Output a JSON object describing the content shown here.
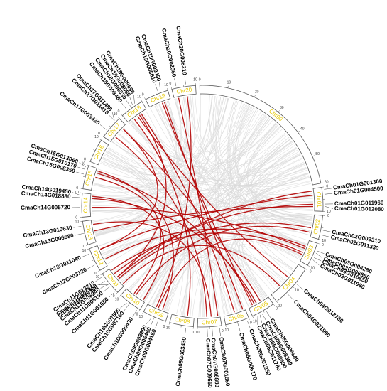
{
  "colors": {
    "segment_label": "#e6c800",
    "highlight_link": "#b30000",
    "background_link": "#d9d9d9"
  },
  "chromosomes": [
    {
      "id": "Chr00",
      "label": "Chr00",
      "max": 60
    },
    {
      "id": "Chr01",
      "label": "Chr01",
      "max": 10
    },
    {
      "id": "Chr02",
      "label": "Chr02",
      "max": 10
    },
    {
      "id": "Chr03",
      "label": "Chr03",
      "max": 10
    },
    {
      "id": "Chr04",
      "label": "Chr04",
      "max": 20
    },
    {
      "id": "Chr05",
      "label": "Chr05",
      "max": 10
    },
    {
      "id": "Chr06",
      "label": "Chr06",
      "max": 10
    },
    {
      "id": "Chr07",
      "label": "Chr07",
      "max": 10
    },
    {
      "id": "Chr08",
      "label": "Chr08",
      "max": 10
    },
    {
      "id": "Chr09",
      "label": "Chr09",
      "max": 10
    },
    {
      "id": "Chr10",
      "label": "Chr10",
      "max": 10
    },
    {
      "id": "Chr11",
      "label": "Chr11",
      "max": 10
    },
    {
      "id": "Chr12",
      "label": "Chr12",
      "max": 10
    },
    {
      "id": "Chr13",
      "label": "Chr13",
      "max": 10
    },
    {
      "id": "Chr14",
      "label": "Chr14",
      "max": 10
    },
    {
      "id": "Chr15",
      "label": "Chr15",
      "max": 10
    },
    {
      "id": "Chr16",
      "label": "Chr16",
      "max": 10
    },
    {
      "id": "Chr17",
      "label": "Chr17",
      "max": 10
    },
    {
      "id": "Chr18",
      "label": "Chr18",
      "max": 10
    },
    {
      "id": "Chr19",
      "label": "Chr19",
      "max": 10
    },
    {
      "id": "Chr20",
      "label": "Chr20",
      "max": 10
    }
  ],
  "genes": [
    {
      "name": "CmaCh01G001300",
      "chr": "Chr01",
      "pos": 1
    },
    {
      "name": "CmaCh01G004500",
      "chr": "Chr01",
      "pos": 3
    },
    {
      "name": "CmaCh01G011960",
      "chr": "Chr01",
      "pos": 7
    },
    {
      "name": "CmaCh01G012080",
      "chr": "Chr01",
      "pos": 8
    },
    {
      "name": "CmaCh02G009310",
      "chr": "Chr02",
      "pos": 6
    },
    {
      "name": "CmaCh02G011330",
      "chr": "Chr02",
      "pos": 8
    },
    {
      "name": "CmaCh03G004280",
      "chr": "Chr03",
      "pos": 3
    },
    {
      "name": "CmaCh03G006860",
      "chr": "Chr03",
      "pos": 4
    },
    {
      "name": "CmaCh03G010550",
      "chr": "Chr03",
      "pos": 6
    },
    {
      "name": "CmaCh03G011980",
      "chr": "Chr03",
      "pos": 7
    },
    {
      "name": "CmaCh04G012780",
      "chr": "Chr04",
      "pos": 8
    },
    {
      "name": "CmaCh04G021960",
      "chr": "Chr04",
      "pos": 14
    },
    {
      "name": "CmaCh05G006640",
      "chr": "Chr05",
      "pos": 4
    },
    {
      "name": "CmaCh05G008390",
      "chr": "Chr05",
      "pos": 6
    },
    {
      "name": "CmaCh05G008690",
      "chr": "Chr05",
      "pos": 7
    },
    {
      "name": "CmaCh05G011780",
      "chr": "Chr05",
      "pos": 8
    },
    {
      "name": "CmaCh06G001250",
      "chr": "Chr06",
      "pos": 1
    },
    {
      "name": "CmaCh06G006170",
      "chr": "Chr06",
      "pos": 5
    },
    {
      "name": "CmaCh07G001850",
      "chr": "Chr07",
      "pos": 1
    },
    {
      "name": "CmaCh07G006880",
      "chr": "Chr07",
      "pos": 4
    },
    {
      "name": "CmaCh07G009650",
      "chr": "Chr07",
      "pos": 6
    },
    {
      "name": "CmaCh08G003430",
      "chr": "Chr08",
      "pos": 3
    },
    {
      "name": "CmaCh09G004150",
      "chr": "Chr09",
      "pos": 3
    },
    {
      "name": "CmaCh09G006480",
      "chr": "Chr09",
      "pos": 5
    },
    {
      "name": "CmaCh09G008890",
      "chr": "Chr09",
      "pos": 6
    },
    {
      "name": "CmaCh10G000430",
      "chr": "Chr10",
      "pos": 1
    },
    {
      "name": "CmaCh10G007160",
      "chr": "Chr10",
      "pos": 5
    },
    {
      "name": "CmaCh10G007550",
      "chr": "Chr10",
      "pos": 6
    },
    {
      "name": "CmaCh11G001650",
      "chr": "Chr11",
      "pos": 1
    },
    {
      "name": "CmaCh11G005190",
      "chr": "Chr11",
      "pos": 4
    },
    {
      "name": "CmaCh11G006240",
      "chr": "Chr11",
      "pos": 5
    },
    {
      "name": "CmaCh11G006860",
      "chr": "Chr11",
      "pos": 5
    },
    {
      "name": "CmaCh11G010160",
      "chr": "Chr11",
      "pos": 7
    },
    {
      "name": "CmaCh11G013810",
      "chr": "Chr11",
      "pos": 9
    },
    {
      "name": "CmaCh12G003120",
      "chr": "Chr12",
      "pos": 3
    },
    {
      "name": "CmaCh12G011040",
      "chr": "Chr12",
      "pos": 8
    },
    {
      "name": "CmaCh13G006680",
      "chr": "Chr13",
      "pos": 5
    },
    {
      "name": "CmaCh13G010630",
      "chr": "Chr13",
      "pos": 8
    },
    {
      "name": "CmaCh14G005720",
      "chr": "Chr14",
      "pos": 4
    },
    {
      "name": "CmaCh14G018880",
      "chr": "Chr14",
      "pos": 8
    },
    {
      "name": "CmaCh14G019450",
      "chr": "Chr14",
      "pos": 9
    },
    {
      "name": "CmaCh15G008350",
      "chr": "Chr15",
      "pos": 6
    },
    {
      "name": "CmaCh15G010170",
      "chr": "Chr15",
      "pos": 8
    },
    {
      "name": "CmaCh15G013060",
      "chr": "Chr15",
      "pos": 9
    },
    {
      "name": "CmaCh17G003320",
      "chr": "Chr17",
      "pos": 3
    },
    {
      "name": "CmaCh17G011410",
      "chr": "Chr17",
      "pos": 8
    },
    {
      "name": "CmaCh17G011480",
      "chr": "Chr17",
      "pos": 8
    },
    {
      "name": "CmaCh18G003480",
      "chr": "Chr18",
      "pos": 3
    },
    {
      "name": "CmaCh18G006830",
      "chr": "Chr18",
      "pos": 5
    },
    {
      "name": "CmaCh18G008080",
      "chr": "Chr18",
      "pos": 6
    },
    {
      "name": "CmaCh18G009690",
      "chr": "Chr18",
      "pos": 7
    },
    {
      "name": "CmaCh19G008610",
      "chr": "Chr19",
      "pos": 6
    },
    {
      "name": "CmaCh19G009480",
      "chr": "Chr19",
      "pos": 7
    },
    {
      "name": "CmaCh20G002360",
      "chr": "Chr20",
      "pos": 2
    },
    {
      "name": "CmaCh20G008210",
      "chr": "Chr20",
      "pos": 6
    }
  ],
  "highlight_links": [
    [
      "CmaCh01G001300",
      "CmaCh11G006240"
    ],
    [
      "CmaCh01G004500",
      "CmaCh12G011040"
    ],
    [
      "CmaCh01G011960",
      "CmaCh11G010160"
    ],
    [
      "CmaCh01G012080",
      "CmaCh13G006680"
    ],
    [
      "CmaCh02G009310",
      "CmaCh11G005190"
    ],
    [
      "CmaCh02G011330",
      "CmaCh10G007160"
    ],
    [
      "CmaCh03G004280",
      "CmaCh12G003120"
    ],
    [
      "CmaCh03G006860",
      "CmaCh14G005720"
    ],
    [
      "CmaCh03G010550",
      "CmaCh11G013810"
    ],
    [
      "CmaCh03G011980",
      "CmaCh09G006480"
    ],
    [
      "CmaCh04G012780",
      "CmaCh18G006830"
    ],
    [
      "CmaCh04G021960",
      "CmaCh11G001650"
    ],
    [
      "CmaCh05G006640",
      "CmaCh17G011410"
    ],
    [
      "CmaCh05G008390",
      "CmaCh14G018880"
    ],
    [
      "CmaCh05G008690",
      "CmaCh15G010170"
    ],
    [
      "CmaCh05G011780",
      "CmaCh19G008610"
    ],
    [
      "CmaCh06G001250",
      "CmaCh19G009480"
    ],
    [
      "CmaCh06G006170",
      "CmaCh18G009690"
    ],
    [
      "CmaCh07G001850",
      "CmaCh20G002360"
    ],
    [
      "CmaCh07G006880",
      "CmaCh13G010630"
    ],
    [
      "CmaCh07G009650",
      "CmaCh17G003320"
    ],
    [
      "CmaCh08G003430",
      "CmaCh18G003480"
    ],
    [
      "CmaCh09G004150",
      "CmaCh15G013060"
    ],
    [
      "CmaCh09G008890",
      "CmaCh20G008210"
    ],
    [
      "CmaCh10G000430",
      "CmaCh14G019450"
    ],
    [
      "CmaCh10G007550",
      "CmaCh15G008350"
    ],
    [
      "CmaCh11G006860",
      "CmaCh18G008080"
    ],
    [
      "CmaCh12G011040",
      "CmaCh17G011480"
    ]
  ]
}
